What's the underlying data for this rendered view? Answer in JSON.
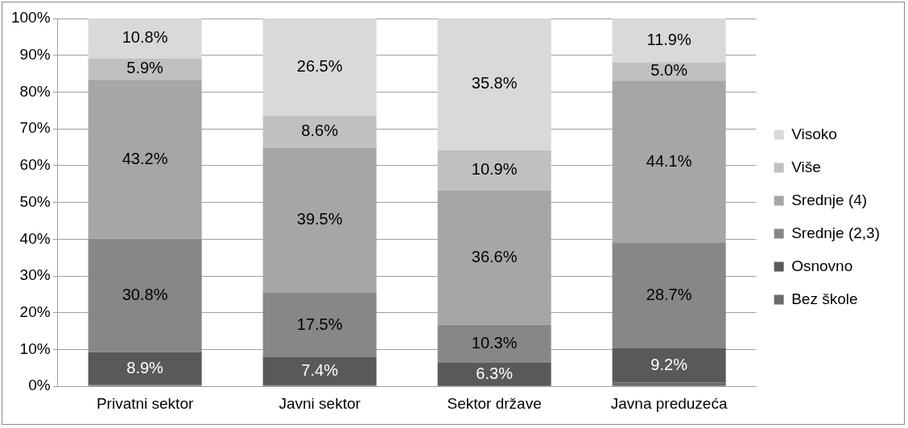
{
  "chart_data": {
    "type": "bar",
    "stacked": true,
    "categories": [
      "Privatni sektor",
      "Javni sektor",
      "Sektor države",
      "Javna preduzeća"
    ],
    "series": [
      {
        "name": "Bez škole",
        "color": "#6b6b6b",
        "values": [
          0.4,
          0.5,
          0.1,
          1.1
        ],
        "value_labels": [
          null,
          null,
          null,
          null
        ]
      },
      {
        "name": "Osnovno",
        "color": "#595959",
        "values": [
          8.9,
          7.4,
          6.3,
          9.2
        ],
        "value_labels": [
          "8.9%",
          "7.4%",
          "6.3%",
          "9.2%"
        ]
      },
      {
        "name": "Srednje (2,3)",
        "color": "#878787",
        "values": [
          30.8,
          17.5,
          10.3,
          28.7
        ],
        "value_labels": [
          "30.8%",
          "17.5%",
          "10.3%",
          "28.7%"
        ]
      },
      {
        "name": "Srednje (4)",
        "color": "#a6a6a6",
        "values": [
          43.2,
          39.5,
          36.6,
          44.1
        ],
        "value_labels": [
          "43.2%",
          "39.5%",
          "36.6%",
          "44.1%"
        ]
      },
      {
        "name": "Više",
        "color": "#c0c0c0",
        "values": [
          5.9,
          8.6,
          10.9,
          5.0
        ],
        "value_labels": [
          "5.9%",
          "8.6%",
          "10.9%",
          "5.0%"
        ]
      },
      {
        "name": "Visoko",
        "color": "#d9d9d9",
        "values": [
          10.8,
          26.5,
          35.8,
          11.9
        ],
        "value_labels": [
          "10.8%",
          "26.5%",
          "35.8%",
          "11.9%"
        ]
      }
    ],
    "ylim": [
      0,
      100
    ],
    "yticks": [
      {
        "value": 0,
        "label": "0%"
      },
      {
        "value": 10,
        "label": "10%"
      },
      {
        "value": 20,
        "label": "20%"
      },
      {
        "value": 30,
        "label": "30%"
      },
      {
        "value": 40,
        "label": "40%"
      },
      {
        "value": 50,
        "label": "50%"
      },
      {
        "value": 60,
        "label": "60%"
      },
      {
        "value": 70,
        "label": "70%"
      },
      {
        "value": 80,
        "label": "80%"
      },
      {
        "value": 90,
        "label": "90%"
      },
      {
        "value": 100,
        "label": "100%"
      }
    ],
    "grid": "y",
    "legend": "right"
  }
}
